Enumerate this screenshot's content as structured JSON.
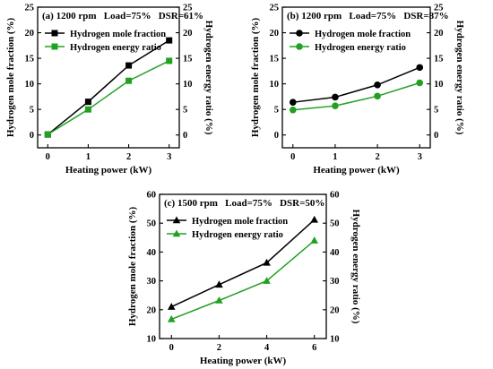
{
  "chart_data": [
    {
      "type": "line",
      "title": "(a) 1200 rpm   Load=75%   DSR=61%",
      "xlabel": "Heating power (kW)",
      "ylabel_left": "Hydrogen mole fraction (%)",
      "ylabel_right": "Hydrogen energy ratio (%)",
      "xlim": [
        -0.25,
        3.25
      ],
      "xticks": [
        0,
        1,
        2,
        3
      ],
      "ylim_left": [
        -2.5,
        25
      ],
      "ylim_right": [
        -2.5,
        25
      ],
      "yticks": [
        0,
        5,
        10,
        15,
        20,
        25
      ],
      "marker": "square",
      "x": [
        0,
        1,
        2,
        3
      ],
      "series": [
        {
          "name": "Hydrogen mole fraction",
          "color": "#000000",
          "axis": "left",
          "values": [
            0.1,
            6.5,
            13.6,
            18.5
          ]
        },
        {
          "name": "Hydrogen energy ratio",
          "color": "#22a022",
          "axis": "right",
          "values": [
            0.1,
            5.0,
            10.6,
            14.5
          ]
        }
      ]
    },
    {
      "type": "line",
      "title": "(b) 1200 rpm   Load=75%   DSR=87%",
      "xlabel": "Heating power (kW)",
      "ylabel_left": "Hydrogen mole fraction (%)",
      "ylabel_right": "Hydrogen energy ratio (%)",
      "xlim": [
        -0.25,
        3.25
      ],
      "xticks": [
        0,
        1,
        2,
        3
      ],
      "ylim_left": [
        -2.5,
        25
      ],
      "ylim_right": [
        -2.5,
        25
      ],
      "yticks": [
        0,
        5,
        10,
        15,
        20,
        25
      ],
      "marker": "circle",
      "x": [
        0,
        1,
        2,
        3
      ],
      "series": [
        {
          "name": "Hydrogen mole fraction",
          "color": "#000000",
          "axis": "left",
          "values": [
            6.4,
            7.4,
            9.8,
            13.2
          ]
        },
        {
          "name": "Hydrogen energy ratio",
          "color": "#22a022",
          "axis": "right",
          "values": [
            4.9,
            5.7,
            7.6,
            10.2
          ]
        }
      ]
    },
    {
      "type": "line",
      "title": "(c) 1500 rpm   Load=75%   DSR=50%",
      "xlabel": "Heating power (kW)",
      "ylabel_left": "Hydrogen mole fraction (%)",
      "ylabel_right": "Hydrogen energy ratio (%)",
      "xlim": [
        -0.5,
        6.5
      ],
      "xticks": [
        0,
        2,
        4,
        6
      ],
      "ylim_left": [
        10,
        60
      ],
      "ylim_right": [
        10,
        60
      ],
      "yticks": [
        10,
        20,
        30,
        40,
        50,
        60
      ],
      "marker": "triangle",
      "x": [
        0,
        2,
        4,
        6
      ],
      "series": [
        {
          "name": "Hydrogen mole fraction",
          "color": "#000000",
          "axis": "left",
          "values": [
            21.0,
            28.7,
            36.3,
            51.2
          ]
        },
        {
          "name": "Hydrogen energy ratio",
          "color": "#22a022",
          "axis": "right",
          "values": [
            16.7,
            23.2,
            30.0,
            44.0
          ]
        }
      ]
    }
  ]
}
